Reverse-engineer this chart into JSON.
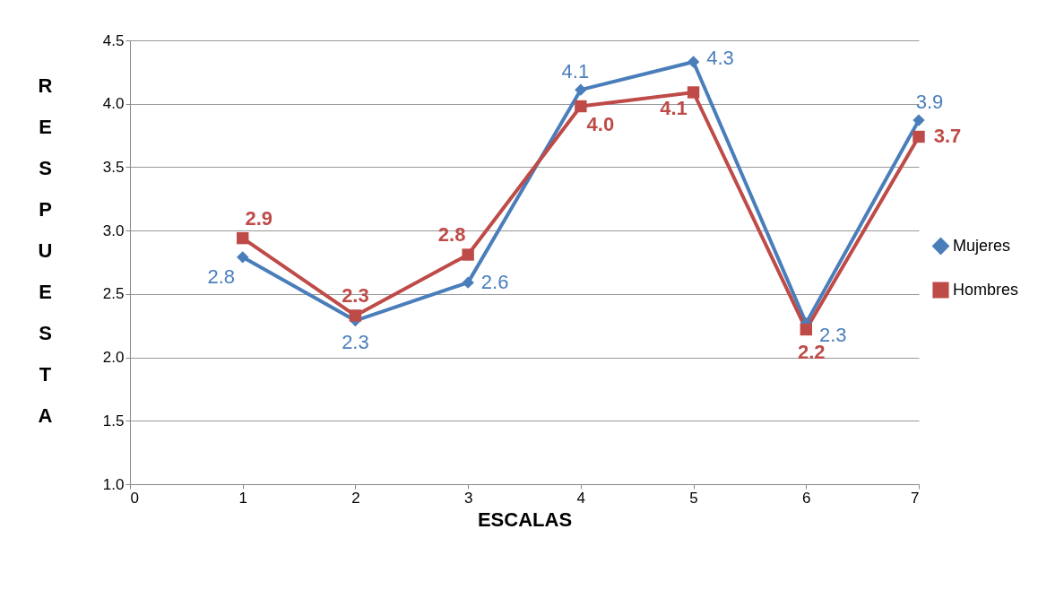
{
  "chart_data": {
    "type": "line",
    "xlabel": "ESCALAS",
    "ylabel": "RESPUESTA",
    "x": [
      1,
      2,
      3,
      4,
      5,
      6,
      7
    ],
    "xlim": [
      0,
      7
    ],
    "xticks": [
      0,
      1,
      2,
      3,
      4,
      5,
      6,
      7
    ],
    "ylim": [
      1,
      4.5
    ],
    "yticks": [
      {
        "value": 1,
        "label": "1.0"
      },
      {
        "value": 1.5,
        "label": "1.5"
      },
      {
        "value": 2,
        "label": "2.0"
      },
      {
        "value": 2.5,
        "label": "2.5"
      },
      {
        "value": 3,
        "label": "3.0"
      },
      {
        "value": 3.5,
        "label": "3.5"
      },
      {
        "value": 4,
        "label": "4.0"
      },
      {
        "value": 4.5,
        "label": "4.5"
      }
    ],
    "grid": "y",
    "legend": "right",
    "line_style": "solid",
    "series": [
      {
        "name": "Mujeres",
        "color": "#4a7ebb",
        "marker": "diamond",
        "values": [
          2.79,
          2.29,
          2.59,
          4.11,
          4.33,
          2.27,
          3.87
        ],
        "value_labels": [
          "2.8",
          "2.3",
          "2.6",
          "4.1",
          "4.3",
          "2.3",
          "3.9"
        ]
      },
      {
        "name": "Hombres",
        "color": "#be4b48",
        "marker": "square",
        "values": [
          2.94,
          2.33,
          2.81,
          3.98,
          4.09,
          2.22,
          3.74
        ],
        "value_labels": [
          "2.9",
          "2.3",
          "2.8",
          "4.0",
          "4.1",
          "2.2",
          "3.7"
        ]
      }
    ]
  }
}
